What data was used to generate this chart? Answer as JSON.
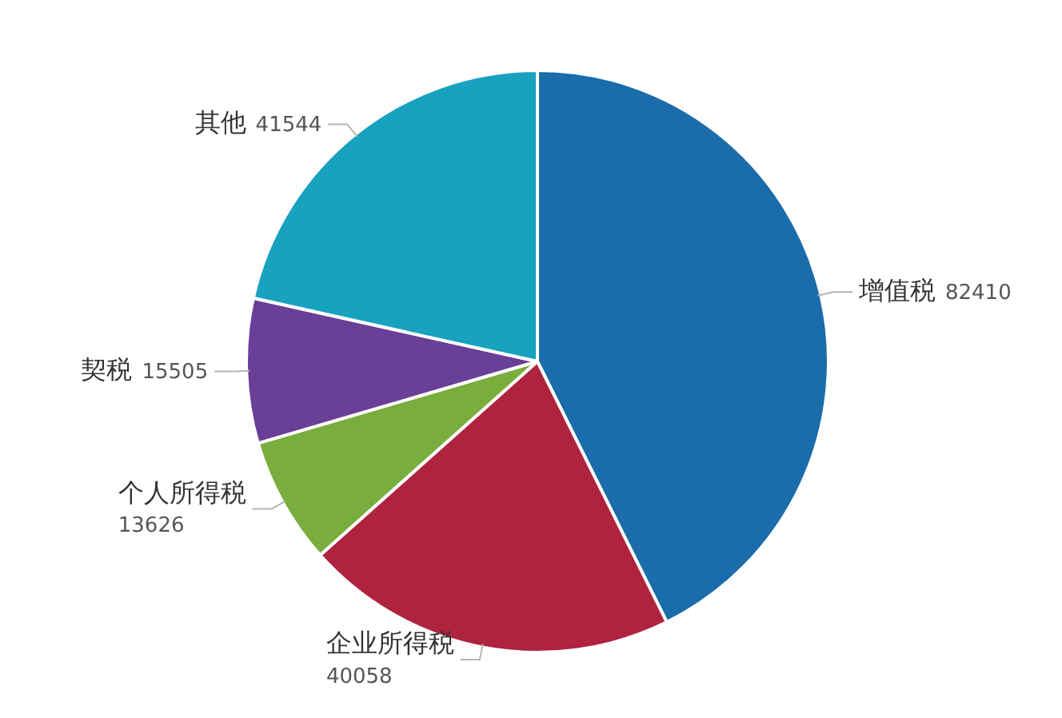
{
  "chart_data": {
    "type": "pie",
    "categories": [
      "增值税",
      "企业所得税",
      "个人所得税",
      "契税",
      "其他"
    ],
    "values": [
      82410,
      40058,
      13626,
      15505,
      41544
    ],
    "colors": [
      "#1b6cab",
      "#b0233f",
      "#79ad3d",
      "#6a3f98",
      "#18a2bf"
    ],
    "data_labels": true
  }
}
